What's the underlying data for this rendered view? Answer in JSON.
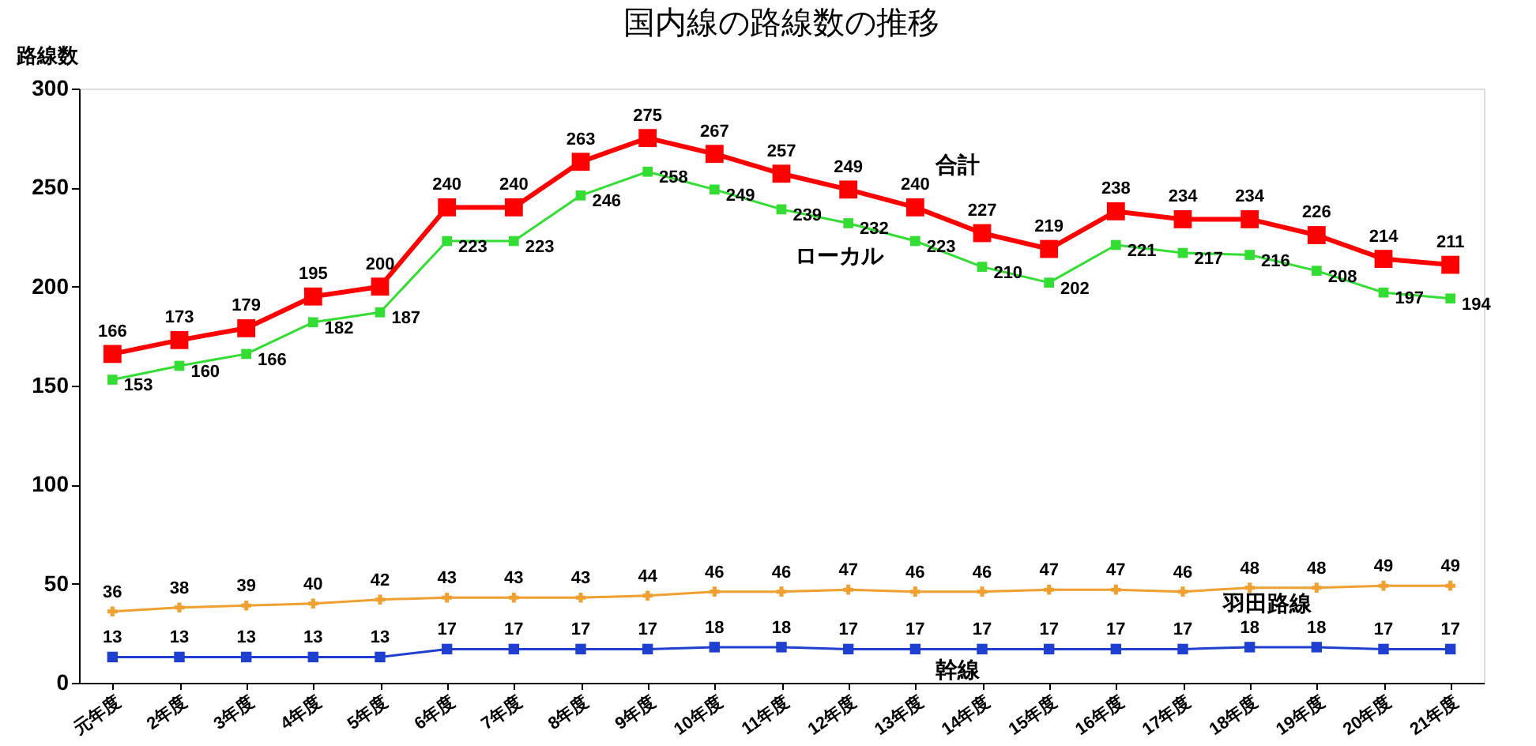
{
  "chart_data": {
    "type": "line",
    "title": "国内線の路線数の推移",
    "ylabel": "路線数",
    "categories": [
      "元年度",
      "2年度",
      "3年度",
      "4年度",
      "5年度",
      "6年度",
      "7年度",
      "8年度",
      "9年度",
      "10年度",
      "11年度",
      "12年度",
      "13年度",
      "14年度",
      "15年度",
      "16年度",
      "17年度",
      "18年度",
      "19年度",
      "20年度",
      "21年度"
    ],
    "ylim": [
      0,
      300
    ],
    "yticks": [
      0,
      50,
      100,
      150,
      200,
      250,
      300
    ],
    "grid": false,
    "data_labels": true,
    "series": [
      {
        "name": "合計",
        "color": "#ff0000",
        "marker": "square",
        "values": [
          166,
          173,
          179,
          195,
          200,
          240,
          240,
          263,
          275,
          267,
          257,
          249,
          240,
          227,
          219,
          238,
          234,
          234,
          226,
          214,
          211
        ]
      },
      {
        "name": "ローカル",
        "color": "#33dd33",
        "marker": "square",
        "values": [
          153,
          160,
          166,
          182,
          187,
          223,
          223,
          246,
          258,
          249,
          239,
          232,
          223,
          210,
          202,
          221,
          217,
          216,
          208,
          197,
          194
        ]
      },
      {
        "name": "羽田路線",
        "color": "#f0a030",
        "marker": "cross",
        "values": [
          36,
          38,
          39,
          40,
          42,
          43,
          43,
          43,
          44,
          46,
          46,
          47,
          46,
          46,
          47,
          47,
          46,
          48,
          48,
          49,
          49
        ]
      },
      {
        "name": "幹線",
        "color": "#1f3fd0",
        "marker": "square",
        "values": [
          13,
          13,
          13,
          13,
          13,
          17,
          17,
          17,
          17,
          18,
          18,
          17,
          17,
          17,
          17,
          17,
          17,
          18,
          18,
          17,
          17
        ]
      }
    ]
  }
}
